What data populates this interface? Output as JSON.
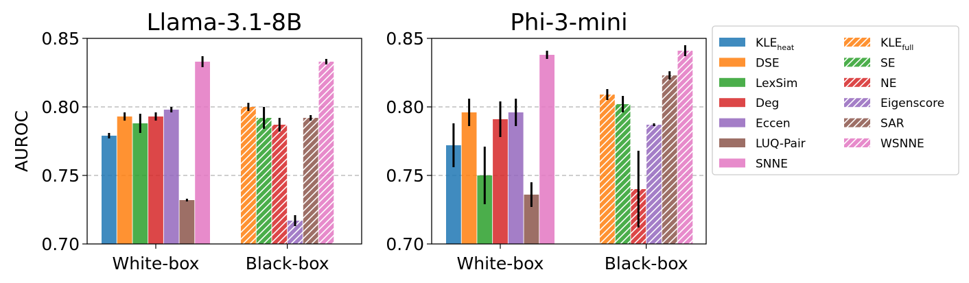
{
  "chart_data": [
    {
      "type": "bar",
      "title": "Llama-3.1-8B",
      "ylabel": "AUROC",
      "ylim": [
        0.7,
        0.85
      ],
      "yticks": [
        "0.70",
        "0.75",
        "0.80",
        "0.85"
      ],
      "grid": "horizontal dashed",
      "groups": [
        {
          "name": "White-box",
          "bars": [
            {
              "method": "KLE_heat",
              "value": 0.779,
              "err": 0.002
            },
            {
              "method": "DSE",
              "value": 0.793,
              "err": 0.003
            },
            {
              "method": "LexSim",
              "value": 0.788,
              "err": 0.007
            },
            {
              "method": "Deg",
              "value": 0.793,
              "err": 0.003
            },
            {
              "method": "Eccen",
              "value": 0.798,
              "err": 0.002
            },
            {
              "method": "LUQ-Pair",
              "value": 0.732,
              "err": 0.001
            },
            {
              "method": "SNNE",
              "value": 0.833,
              "err": 0.004
            }
          ]
        },
        {
          "name": "Black-box",
          "bars": [
            {
              "method": "KLE_full",
              "value": 0.8,
              "err": 0.003
            },
            {
              "method": "SE",
              "value": 0.792,
              "err": 0.008
            },
            {
              "method": "NE",
              "value": 0.787,
              "err": 0.005
            },
            {
              "method": "Eigenscore",
              "value": 0.717,
              "err": 0.004
            },
            {
              "method": "SAR",
              "value": 0.792,
              "err": 0.002
            },
            {
              "method": "WSNNE",
              "value": 0.833,
              "err": 0.002
            }
          ]
        }
      ]
    },
    {
      "type": "bar",
      "title": "Phi-3-mini",
      "ylabel": "",
      "ylim": [
        0.7,
        0.85
      ],
      "yticks": [
        "0.70",
        "0.75",
        "0.80",
        "0.85"
      ],
      "grid": "horizontal dashed",
      "groups": [
        {
          "name": "White-box",
          "bars": [
            {
              "method": "KLE_heat",
              "value": 0.772,
              "err": 0.016
            },
            {
              "method": "DSE",
              "value": 0.796,
              "err": 0.01
            },
            {
              "method": "LexSim",
              "value": 0.75,
              "err": 0.021
            },
            {
              "method": "Deg",
              "value": 0.791,
              "err": 0.013
            },
            {
              "method": "Eccen",
              "value": 0.796,
              "err": 0.01
            },
            {
              "method": "LUQ-Pair",
              "value": 0.736,
              "err": 0.009
            },
            {
              "method": "SNNE",
              "value": 0.838,
              "err": 0.003
            }
          ]
        },
        {
          "name": "Black-box",
          "bars": [
            {
              "method": "KLE_full",
              "value": 0.809,
              "err": 0.004
            },
            {
              "method": "SE",
              "value": 0.802,
              "err": 0.006
            },
            {
              "method": "NE",
              "value": 0.74,
              "err": 0.028
            },
            {
              "method": "Eigenscore",
              "value": 0.787,
              "err": 0.001
            },
            {
              "method": "SAR",
              "value": 0.823,
              "err": 0.003
            },
            {
              "method": "WSNNE",
              "value": 0.841,
              "err": 0.004
            }
          ]
        }
      ]
    }
  ],
  "legend": {
    "placement": "right",
    "items": [
      {
        "method": "KLE_heat",
        "label": "KLE",
        "sub": "heat",
        "color": "#1f77b4",
        "hatch": false
      },
      {
        "method": "DSE",
        "label": "DSE",
        "sub": "",
        "color": "#ff7f0e",
        "hatch": false
      },
      {
        "method": "LexSim",
        "label": "LexSim",
        "sub": "",
        "color": "#2ca02c",
        "hatch": false
      },
      {
        "method": "Deg",
        "label": "Deg",
        "sub": "",
        "color": "#d62728",
        "hatch": false
      },
      {
        "method": "Eccen",
        "label": "Eccen",
        "sub": "",
        "color": "#9467bd",
        "hatch": false
      },
      {
        "method": "LUQ-Pair",
        "label": "LUQ-Pair",
        "sub": "",
        "color": "#8c564b",
        "hatch": false
      },
      {
        "method": "SNNE",
        "label": "SNNE",
        "sub": "",
        "color": "#e377c2",
        "hatch": false
      },
      {
        "method": "KLE_full",
        "label": "KLE",
        "sub": "full",
        "color": "#ff7f0e",
        "hatch": true
      },
      {
        "method": "SE",
        "label": "SE",
        "sub": "",
        "color": "#2ca02c",
        "hatch": true
      },
      {
        "method": "NE",
        "label": "NE",
        "sub": "",
        "color": "#d62728",
        "hatch": true
      },
      {
        "method": "Eigenscore",
        "label": "Eigenscore",
        "sub": "",
        "color": "#9467bd",
        "hatch": true
      },
      {
        "method": "SAR",
        "label": "SAR",
        "sub": "",
        "color": "#8c564b",
        "hatch": true
      },
      {
        "method": "WSNNE",
        "label": "WSNNE",
        "sub": "",
        "color": "#e377c2",
        "hatch": true
      }
    ]
  }
}
